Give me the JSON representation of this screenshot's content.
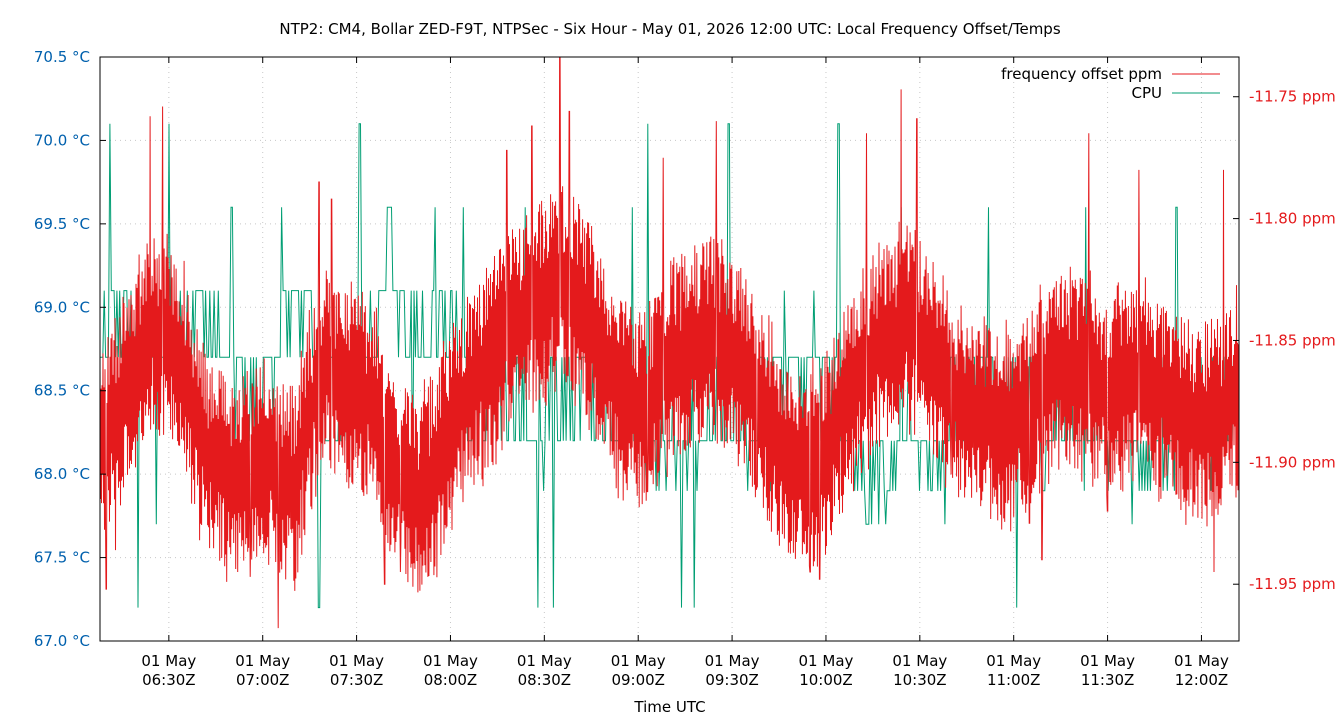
{
  "chart_data": {
    "type": "line",
    "title": "NTP2: CM4, Bollar ZED-F9T, NTPSec - Six Hour - May 01, 2026 12:00 UTC: Local Frequency Offset/Temps",
    "xlabel": "Time UTC",
    "x_range": [
      "06:08",
      "12:12"
    ],
    "x_ticks": [
      {
        "time": "06:30",
        "label": [
          "01 May",
          "06:30Z"
        ]
      },
      {
        "time": "07:00",
        "label": [
          "01 May",
          "07:00Z"
        ]
      },
      {
        "time": "07:30",
        "label": [
          "01 May",
          "07:30Z"
        ]
      },
      {
        "time": "08:00",
        "label": [
          "01 May",
          "08:00Z"
        ]
      },
      {
        "time": "08:30",
        "label": [
          "01 May",
          "08:30Z"
        ]
      },
      {
        "time": "09:00",
        "label": [
          "01 May",
          "09:00Z"
        ]
      },
      {
        "time": "09:30",
        "label": [
          "01 May",
          "09:30Z"
        ]
      },
      {
        "time": "10:00",
        "label": [
          "01 May",
          "10:00Z"
        ]
      },
      {
        "time": "10:30",
        "label": [
          "01 May",
          "10:30Z"
        ]
      },
      {
        "time": "11:00",
        "label": [
          "01 May",
          "11:00Z"
        ]
      },
      {
        "time": "11:30",
        "label": [
          "01 May",
          "11:30Z"
        ]
      },
      {
        "time": "12:00",
        "label": [
          "01 May",
          "12:00Z"
        ]
      }
    ],
    "y_left": {
      "ylim": [
        67.0,
        70.5
      ],
      "ticks": [
        {
          "value": 67.0,
          "label": "67.0 °C"
        },
        {
          "value": 67.5,
          "label": "67.5 °C"
        },
        {
          "value": 68.0,
          "label": "68.0 °C"
        },
        {
          "value": 68.5,
          "label": "68.5 °C"
        },
        {
          "value": 69.0,
          "label": "69.0 °C"
        },
        {
          "value": 69.5,
          "label": "69.5 °C"
        },
        {
          "value": 70.0,
          "label": "70.0 °C"
        },
        {
          "value": 70.5,
          "label": "70.5 °C"
        }
      ],
      "color": "#0060ad"
    },
    "y_right": {
      "ylim": [
        -11.9733,
        -11.7337
      ],
      "ticks": [
        {
          "value": -11.75,
          "label": "-11.75 ppm"
        },
        {
          "value": -11.8,
          "label": "-11.80 ppm"
        },
        {
          "value": -11.85,
          "label": "-11.85 ppm"
        },
        {
          "value": -11.9,
          "label": "-11.90 ppm"
        },
        {
          "value": -11.95,
          "label": "-11.95 ppm"
        }
      ],
      "color": "#e41a1c"
    },
    "grid": true,
    "legend_position": "top-right",
    "series": [
      {
        "name": "frequency offset ppm",
        "axis": "right",
        "color": "#e41a1c",
        "points": [
          [
            "06:08",
            -11.895
          ],
          [
            "06:15",
            -11.875
          ],
          [
            "06:20",
            -11.856
          ],
          [
            "06:25",
            -11.848
          ],
          [
            "06:30",
            -11.85
          ],
          [
            "06:35",
            -11.862
          ],
          [
            "06:40",
            -11.89
          ],
          [
            "06:45",
            -11.9
          ],
          [
            "06:50",
            -11.908
          ],
          [
            "06:55",
            -11.904
          ],
          [
            "07:00",
            -11.898
          ],
          [
            "07:05",
            -11.905
          ],
          [
            "07:10",
            -11.912
          ],
          [
            "07:15",
            -11.88
          ],
          [
            "07:20",
            -11.86
          ],
          [
            "07:25",
            -11.868
          ],
          [
            "07:30",
            -11.87
          ],
          [
            "07:35",
            -11.875
          ],
          [
            "07:40",
            -11.9
          ],
          [
            "07:45",
            -11.908
          ],
          [
            "07:50",
            -11.912
          ],
          [
            "07:55",
            -11.905
          ],
          [
            "08:00",
            -11.885
          ],
          [
            "08:05",
            -11.875
          ],
          [
            "08:10",
            -11.865
          ],
          [
            "08:15",
            -11.855
          ],
          [
            "08:20",
            -11.845
          ],
          [
            "08:25",
            -11.838
          ],
          [
            "08:30",
            -11.835
          ],
          [
            "08:35",
            -11.828
          ],
          [
            "08:40",
            -11.835
          ],
          [
            "08:45",
            -11.845
          ],
          [
            "08:50",
            -11.86
          ],
          [
            "08:55",
            -11.875
          ],
          [
            "09:00",
            -11.88
          ],
          [
            "09:05",
            -11.872
          ],
          [
            "09:10",
            -11.86
          ],
          [
            "09:15",
            -11.855
          ],
          [
            "09:20",
            -11.85
          ],
          [
            "09:25",
            -11.85
          ],
          [
            "09:30",
            -11.855
          ],
          [
            "09:35",
            -11.865
          ],
          [
            "09:40",
            -11.88
          ],
          [
            "09:45",
            -11.893
          ],
          [
            "09:50",
            -11.9
          ],
          [
            "09:55",
            -11.902
          ],
          [
            "10:00",
            -11.895
          ],
          [
            "10:05",
            -11.88
          ],
          [
            "10:10",
            -11.865
          ],
          [
            "10:15",
            -11.855
          ],
          [
            "10:20",
            -11.85
          ],
          [
            "10:25",
            -11.842
          ],
          [
            "10:30",
            -11.85
          ],
          [
            "10:35",
            -11.86
          ],
          [
            "10:40",
            -11.872
          ],
          [
            "10:45",
            -11.878
          ],
          [
            "10:50",
            -11.88
          ],
          [
            "10:55",
            -11.885
          ],
          [
            "11:00",
            -11.887
          ],
          [
            "11:05",
            -11.878
          ],
          [
            "11:10",
            -11.868
          ],
          [
            "11:15",
            -11.86
          ],
          [
            "11:20",
            -11.862
          ],
          [
            "11:25",
            -11.865
          ],
          [
            "11:30",
            -11.872
          ],
          [
            "11:35",
            -11.868
          ],
          [
            "11:40",
            -11.865
          ],
          [
            "11:45",
            -11.87
          ],
          [
            "11:50",
            -11.875
          ],
          [
            "11:55",
            -11.88
          ],
          [
            "12:00",
            -11.885
          ],
          [
            "12:05",
            -11.882
          ],
          [
            "12:12",
            -11.87
          ]
        ],
        "spikes": [
          [
            "06:10",
            -11.952
          ],
          [
            "06:13",
            -11.936
          ],
          [
            "06:24",
            -11.758
          ],
          [
            "06:28",
            -11.754
          ],
          [
            "06:52",
            -11.945
          ],
          [
            "06:56",
            -11.947
          ],
          [
            "07:01",
            -11.935
          ],
          [
            "07:05",
            -11.968
          ],
          [
            "07:18",
            -11.785
          ],
          [
            "07:22",
            -11.792
          ],
          [
            "07:39",
            -11.95
          ],
          [
            "07:44",
            -11.945
          ],
          [
            "07:57",
            -11.938
          ],
          [
            "08:18",
            -11.772
          ],
          [
            "08:26",
            -11.762
          ],
          [
            "08:35",
            -11.734
          ],
          [
            "08:38",
            -11.756
          ],
          [
            "09:03",
            -11.912
          ],
          [
            "09:08",
            -11.775
          ],
          [
            "09:25",
            -11.76
          ],
          [
            "09:38",
            -11.91
          ],
          [
            "09:55",
            -11.945
          ],
          [
            "09:58",
            -11.948
          ],
          [
            "10:13",
            -11.765
          ],
          [
            "10:24",
            -11.747
          ],
          [
            "10:29",
            -11.759
          ],
          [
            "10:40",
            -11.905
          ],
          [
            "11:05",
            -11.925
          ],
          [
            "11:09",
            -11.94
          ],
          [
            "11:24",
            -11.765
          ],
          [
            "11:30",
            -11.92
          ],
          [
            "11:40",
            -11.78
          ],
          [
            "12:04",
            -11.945
          ],
          [
            "12:07",
            -11.78
          ]
        ]
      },
      {
        "name": "CPU",
        "axis": "left",
        "color": "#009e73",
        "levels": [
          67.2,
          67.7,
          67.9,
          68.2,
          68.7,
          69.1,
          69.6,
          70.1
        ],
        "points": [
          [
            "06:08",
            68.7
          ],
          [
            "06:15",
            68.9
          ],
          [
            "06:20",
            68.7
          ],
          [
            "06:25",
            68.6
          ],
          [
            "06:30",
            68.7
          ],
          [
            "06:35",
            68.9
          ],
          [
            "06:40",
            69.0
          ],
          [
            "06:45",
            68.8
          ],
          [
            "06:50",
            68.6
          ],
          [
            "06:55",
            68.4
          ],
          [
            "07:00",
            68.5
          ],
          [
            "07:05",
            68.7
          ],
          [
            "07:10",
            69.1
          ],
          [
            "07:15",
            68.9
          ],
          [
            "07:20",
            68.6
          ],
          [
            "07:25",
            68.4
          ],
          [
            "07:30",
            68.5
          ],
          [
            "07:35",
            68.8
          ],
          [
            "07:40",
            69.2
          ],
          [
            "07:45",
            69.0
          ],
          [
            "07:50",
            68.7
          ],
          [
            "07:55",
            68.8
          ],
          [
            "08:00",
            68.8
          ],
          [
            "08:05",
            68.6
          ],
          [
            "08:10",
            68.5
          ],
          [
            "08:15",
            68.6
          ],
          [
            "08:20",
            68.4
          ],
          [
            "08:25",
            68.3
          ],
          [
            "08:30",
            68.3
          ],
          [
            "08:35",
            68.3
          ],
          [
            "08:40",
            68.6
          ],
          [
            "08:45",
            68.6
          ],
          [
            "08:50",
            68.5
          ],
          [
            "08:55",
            68.4
          ],
          [
            "09:00",
            68.2
          ],
          [
            "09:05",
            68.3
          ],
          [
            "09:10",
            68.2
          ],
          [
            "09:15",
            68.3
          ],
          [
            "09:20",
            68.2
          ],
          [
            "09:25",
            68.3
          ],
          [
            "09:30",
            68.4
          ],
          [
            "09:35",
            68.2
          ],
          [
            "09:40",
            68.4
          ],
          [
            "09:45",
            68.7
          ],
          [
            "09:50",
            68.7
          ],
          [
            "09:55",
            68.7
          ],
          [
            "10:00",
            68.6
          ],
          [
            "10:05",
            68.4
          ],
          [
            "10:10",
            68.1
          ],
          [
            "10:15",
            67.9
          ],
          [
            "10:20",
            68.0
          ],
          [
            "10:25",
            68.4
          ],
          [
            "10:30",
            68.2
          ],
          [
            "10:35",
            68.0
          ],
          [
            "10:40",
            68.5
          ],
          [
            "10:45",
            68.4
          ],
          [
            "10:50",
            68.5
          ],
          [
            "10:55",
            68.4
          ],
          [
            "11:00",
            68.3
          ],
          [
            "11:05",
            68.4
          ],
          [
            "11:10",
            68.2
          ],
          [
            "11:15",
            68.4
          ],
          [
            "11:20",
            68.2
          ],
          [
            "11:25",
            68.4
          ],
          [
            "11:30",
            68.2
          ],
          [
            "11:35",
            68.3
          ],
          [
            "11:40",
            68.1
          ],
          [
            "11:45",
            68.3
          ],
          [
            "11:50",
            68.2
          ],
          [
            "11:55",
            68.3
          ],
          [
            "12:00",
            68.4
          ],
          [
            "12:05",
            68.3
          ],
          [
            "12:12",
            68.6
          ]
        ],
        "spikes": [
          [
            "06:11",
            70.1
          ],
          [
            "06:20",
            67.2
          ],
          [
            "06:26",
            67.7
          ],
          [
            "06:30",
            70.1
          ],
          [
            "06:50",
            69.6
          ],
          [
            "06:59",
            67.9
          ],
          [
            "07:06",
            69.6
          ],
          [
            "07:18",
            67.2
          ],
          [
            "07:31",
            70.1
          ],
          [
            "07:40",
            69.6
          ],
          [
            "07:48",
            67.9
          ],
          [
            "07:55",
            69.6
          ],
          [
            "08:04",
            69.6
          ],
          [
            "08:24",
            69.6
          ],
          [
            "08:28",
            67.2
          ],
          [
            "08:33",
            67.2
          ],
          [
            "08:58",
            69.6
          ],
          [
            "09:03",
            70.1
          ],
          [
            "09:14",
            67.2
          ],
          [
            "09:18",
            67.2
          ],
          [
            "09:29",
            70.1
          ],
          [
            "09:42",
            67.9
          ],
          [
            "10:04",
            70.1
          ],
          [
            "10:13",
            67.7
          ],
          [
            "10:24",
            69.6
          ],
          [
            "10:38",
            67.7
          ],
          [
            "10:52",
            69.6
          ],
          [
            "11:01",
            67.2
          ],
          [
            "11:23",
            69.6
          ],
          [
            "11:38",
            67.7
          ],
          [
            "11:52",
            69.6
          ],
          [
            "12:03",
            67.9
          ]
        ]
      }
    ]
  }
}
